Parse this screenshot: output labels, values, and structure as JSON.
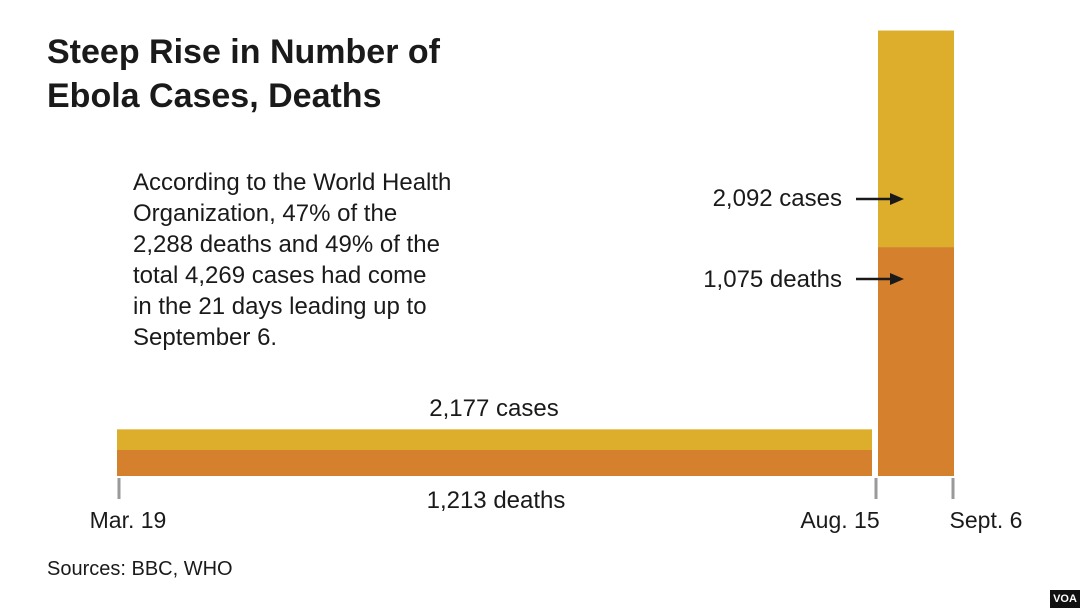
{
  "title_line1": "Steep Rise in Number of",
  "title_line2": "Ebola Cases, Deaths",
  "note_lines": [
    "According to the World Health",
    "Organization, 47% of the",
    "2,288 deaths and 49% of the",
    "total 4,269 cases had come",
    "in the 21 days leading up to",
    "September 6."
  ],
  "source": "Sources: BBC, WHO",
  "badge": "VOA",
  "chart_data": {
    "type": "bar",
    "title": "Steep Rise in Number of Ebola Cases, Deaths",
    "xlabel": "",
    "ylabel": "",
    "x_ticks": [
      "Mar. 19",
      "Aug. 15",
      "Sept. 6"
    ],
    "periods": [
      "Mar. 19 – Aug. 15",
      "Aug. 15 – Sept. 6"
    ],
    "series": [
      {
        "name": "cases",
        "values": [
          2177,
          2092
        ],
        "color": "#dcae2c"
      },
      {
        "name": "deaths",
        "values": [
          1213,
          1075
        ],
        "color": "#d5802d"
      }
    ],
    "labels": {
      "period1_cases": "2,177 cases",
      "period1_deaths": "1,213 deaths",
      "period2_cases": "2,092 cases",
      "period2_deaths": "1,075 deaths"
    },
    "encoding": "bar area proportional to count; period 2 is a narrow tall bar",
    "legend": "none",
    "grid": false
  }
}
